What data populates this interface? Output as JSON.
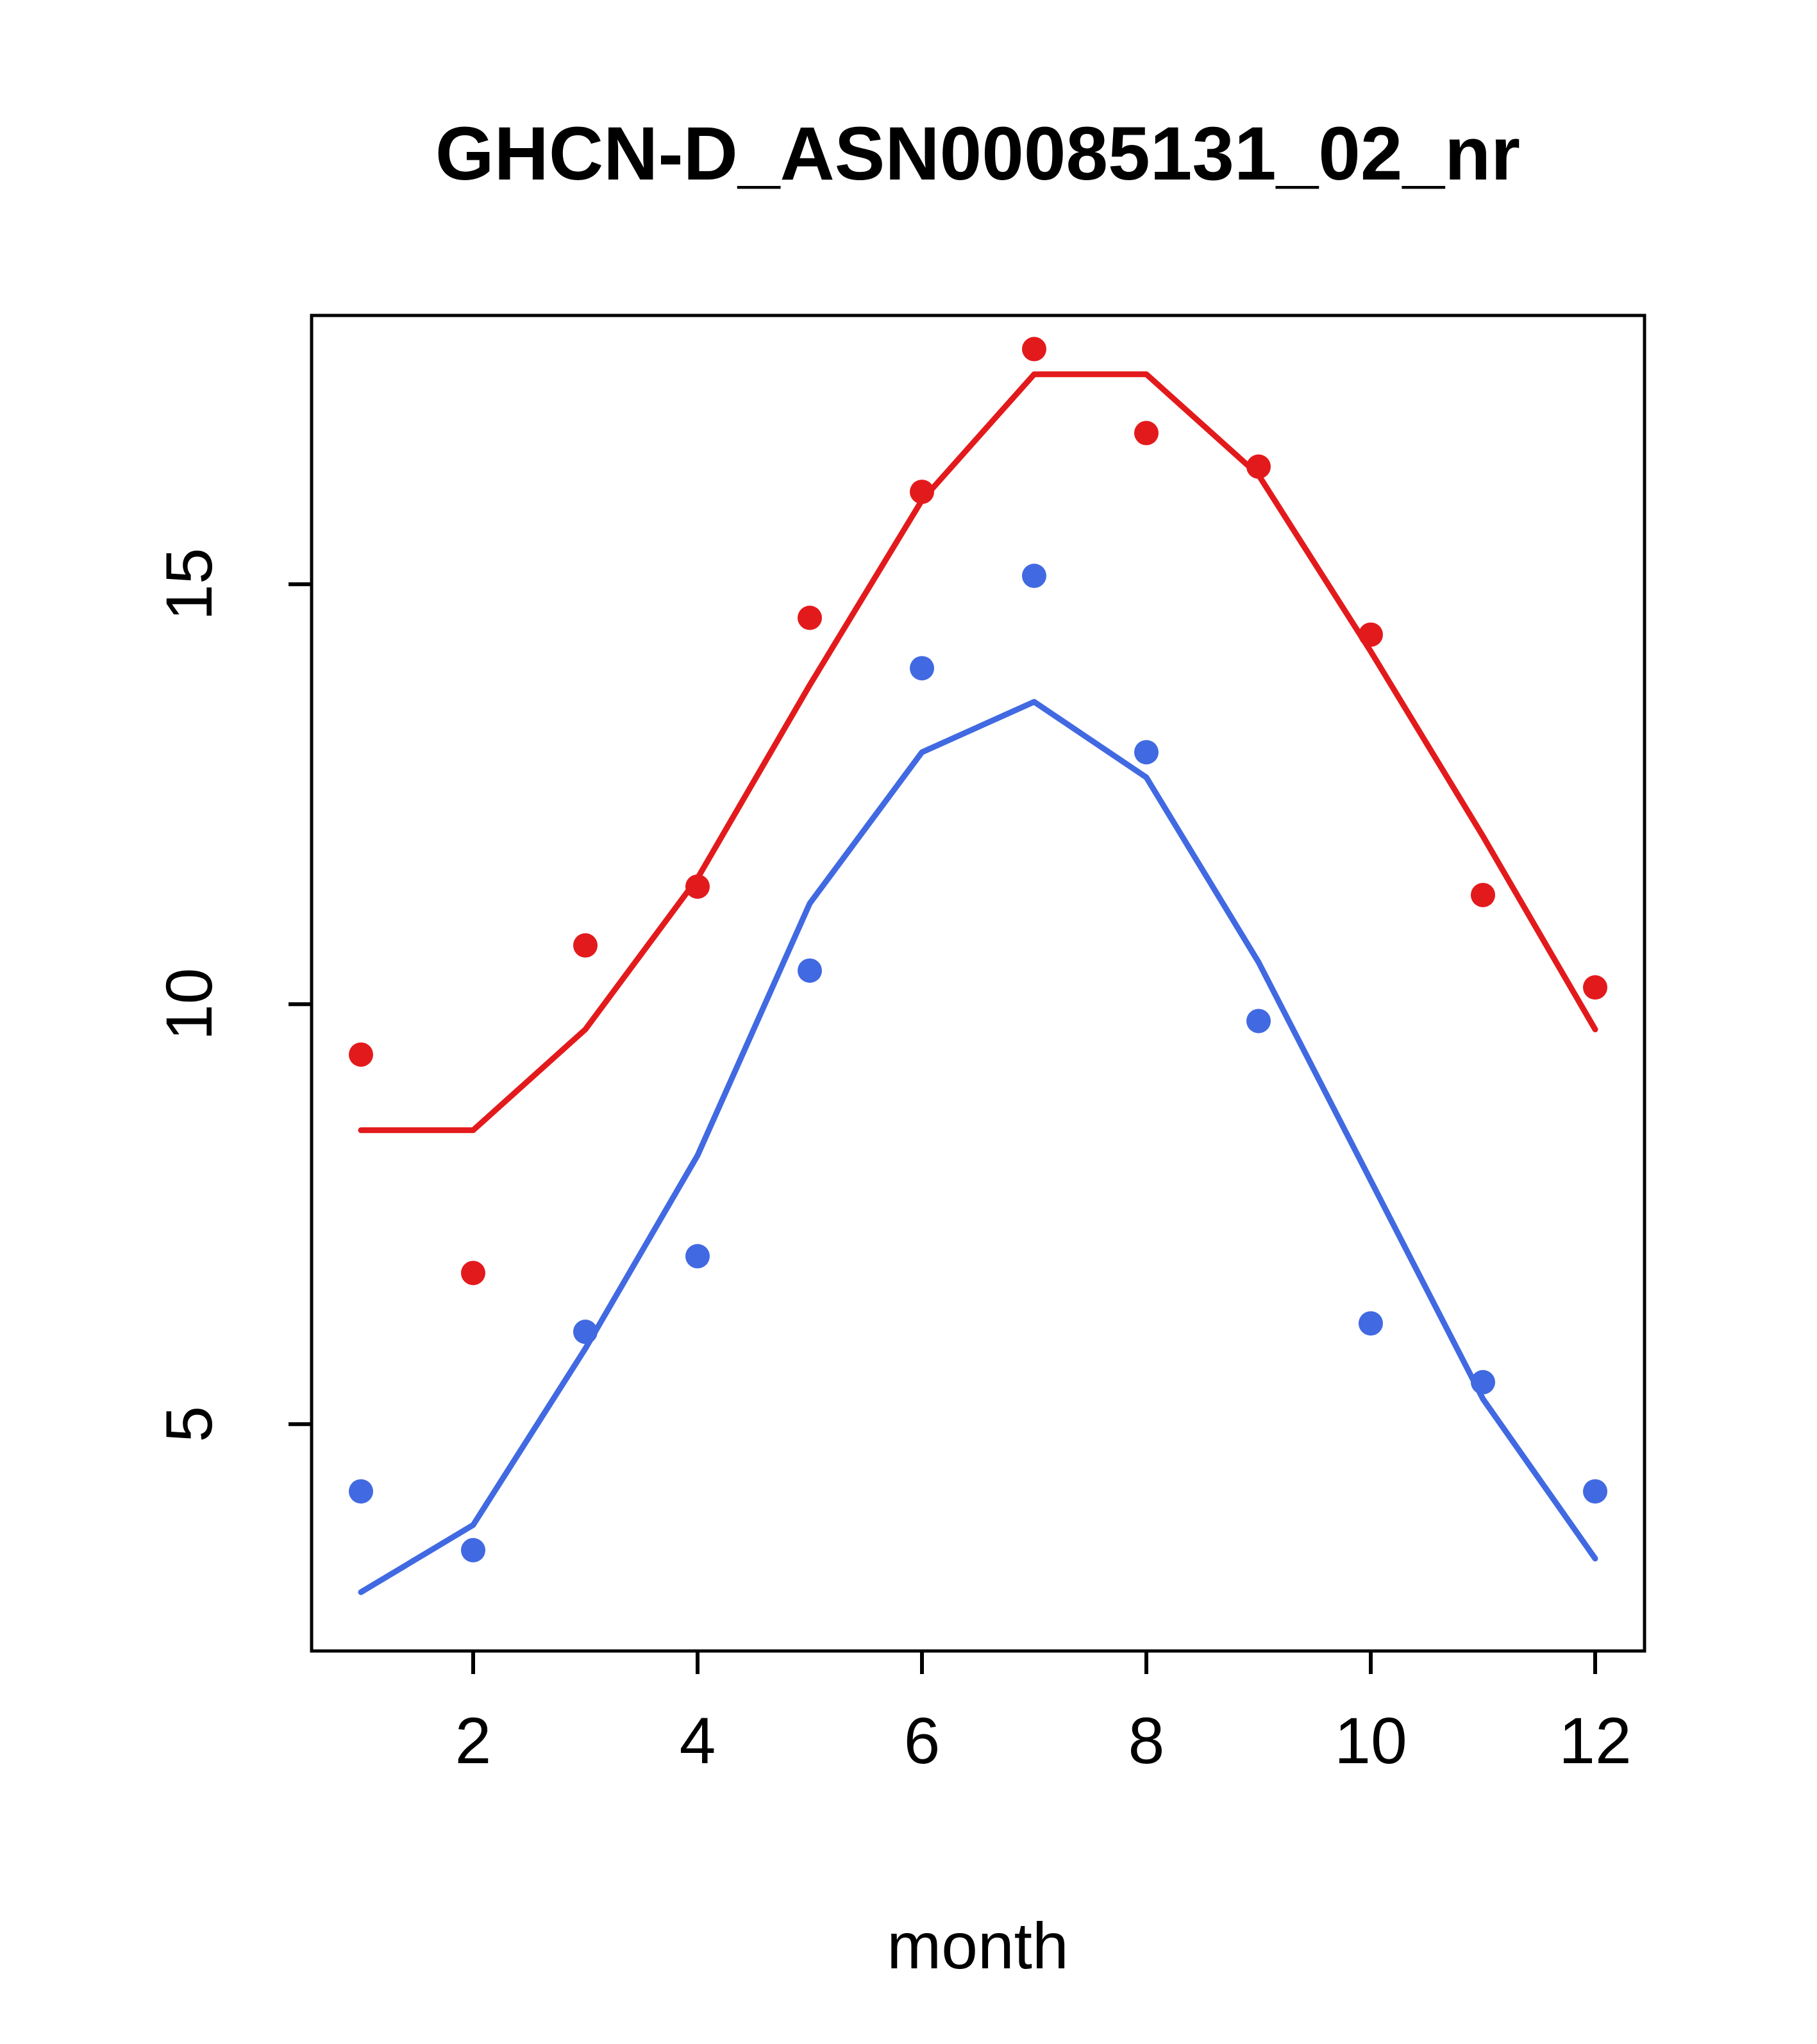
{
  "chart_data": {
    "type": "line",
    "title": "GHCN-D_ASN00085131_02_nr",
    "xlabel": "month",
    "ylabel": "",
    "x": [
      1,
      2,
      3,
      4,
      5,
      6,
      7,
      8,
      9,
      10,
      11,
      12
    ],
    "series": [
      {
        "name": "red-line",
        "type": "line",
        "color": "#e31a1c",
        "values": [
          8.5,
          8.5,
          9.7,
          11.5,
          13.8,
          16.0,
          17.5,
          17.5,
          16.3,
          14.2,
          12.0,
          9.7
        ]
      },
      {
        "name": "blue-line",
        "type": "line",
        "color": "#4169e1",
        "values": [
          3.0,
          3.8,
          5.9,
          8.2,
          11.2,
          13.0,
          13.6,
          12.7,
          10.5,
          7.9,
          5.3,
          3.4
        ]
      },
      {
        "name": "red-points",
        "type": "scatter",
        "color": "#e31a1c",
        "values": [
          9.4,
          6.8,
          10.7,
          11.4,
          14.6,
          16.1,
          17.8,
          16.8,
          16.4,
          14.4,
          11.3,
          10.2
        ]
      },
      {
        "name": "blue-points",
        "type": "scatter",
        "color": "#4169e1",
        "values": [
          4.2,
          3.5,
          6.1,
          7.0,
          10.4,
          14.0,
          15.1,
          13.0,
          9.8,
          6.2,
          5.5,
          4.2
        ]
      }
    ],
    "xlim": [
      0.56,
      12.44
    ],
    "ylim": [
      2.3,
      18.2
    ],
    "xticks": [
      2,
      4,
      6,
      8,
      10,
      12
    ],
    "yticks": [
      5,
      10,
      15
    ],
    "grid": false,
    "legend": "none",
    "line_width": 9,
    "point_radius": 19,
    "frame_color": "#000000"
  }
}
